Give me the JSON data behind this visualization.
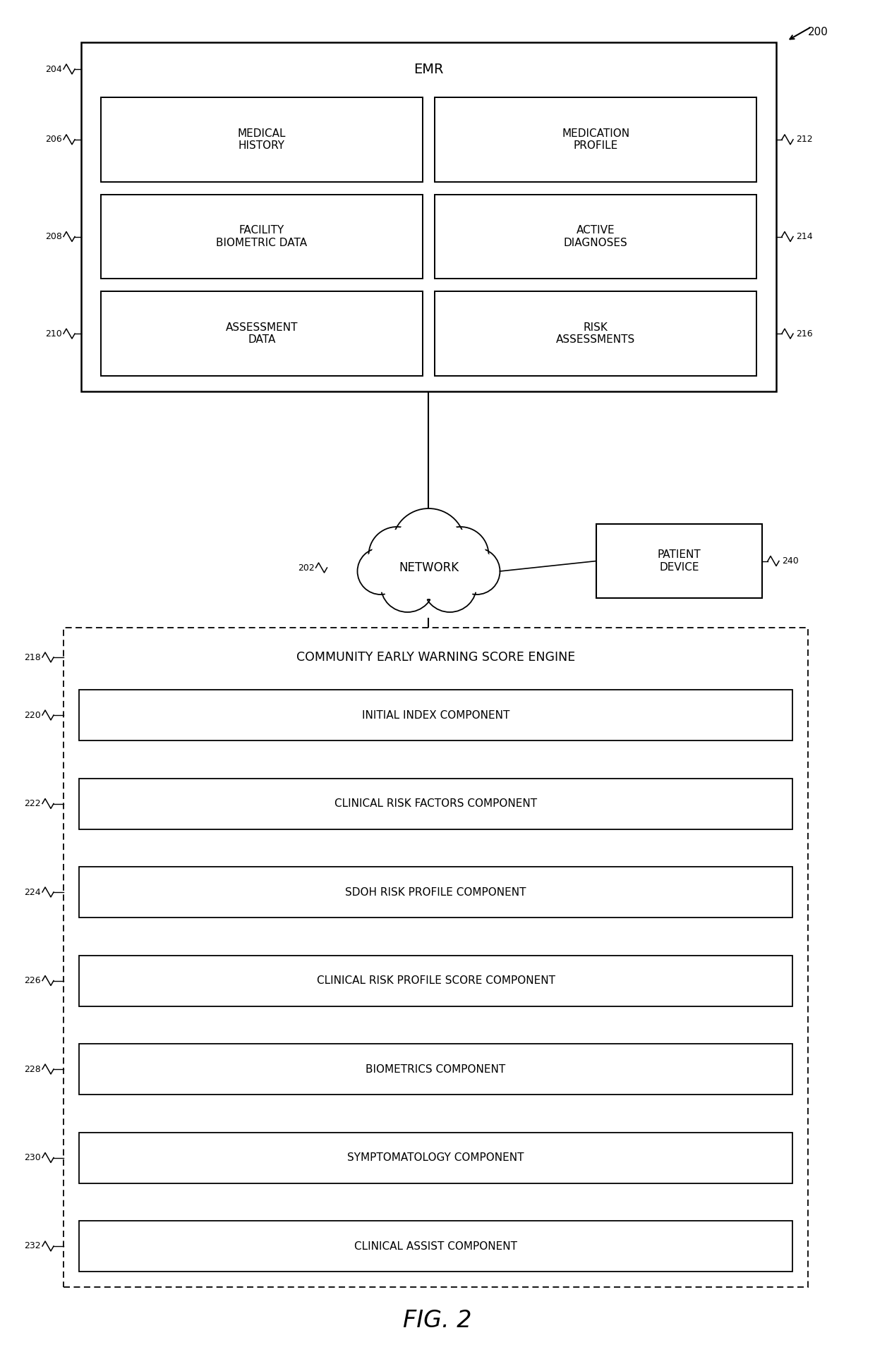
{
  "figure_label": "FIG. 2",
  "figure_number": "200",
  "background_color": "#ffffff",
  "line_color": "#000000",
  "emr_label": "EMR",
  "emr_ref": "204",
  "network_label": "NETWORK",
  "network_ref": "202",
  "patient_device_label": "PATIENT\nDEVICE",
  "patient_device_ref": "240",
  "engine_label": "COMMUNITY EARLY WARNING SCORE ENGINE",
  "engine_ref": "218",
  "left_refs": [
    "206",
    "208",
    "210"
  ],
  "right_refs": [
    "212",
    "214",
    "216"
  ],
  "box_labels_left": [
    "MEDICAL\nHISTORY",
    "FACILITY\nBIOMETRIC DATA",
    "ASSESSMENT\nDATA"
  ],
  "box_labels_right": [
    "MEDICATION\nPROFILE",
    "ACTIVE\nDIAGNOSES",
    "RISK\nASSESSMENTS"
  ],
  "engine_components": [
    {
      "label": "INITIAL INDEX COMPONENT",
      "ref": "220"
    },
    {
      "label": "CLINICAL RISK FACTORS COMPONENT",
      "ref": "222"
    },
    {
      "label": "SDOH RISK PROFILE COMPONENT",
      "ref": "224"
    },
    {
      "label": "CLINICAL RISK PROFILE SCORE COMPONENT",
      "ref": "226"
    },
    {
      "label": "BIOMETRICS COMPONENT",
      "ref": "228"
    },
    {
      "label": "SYMPTOMATOLOGY COMPONENT",
      "ref": "230"
    },
    {
      "label": "CLINICAL ASSIST COMPONENT",
      "ref": "232"
    }
  ]
}
